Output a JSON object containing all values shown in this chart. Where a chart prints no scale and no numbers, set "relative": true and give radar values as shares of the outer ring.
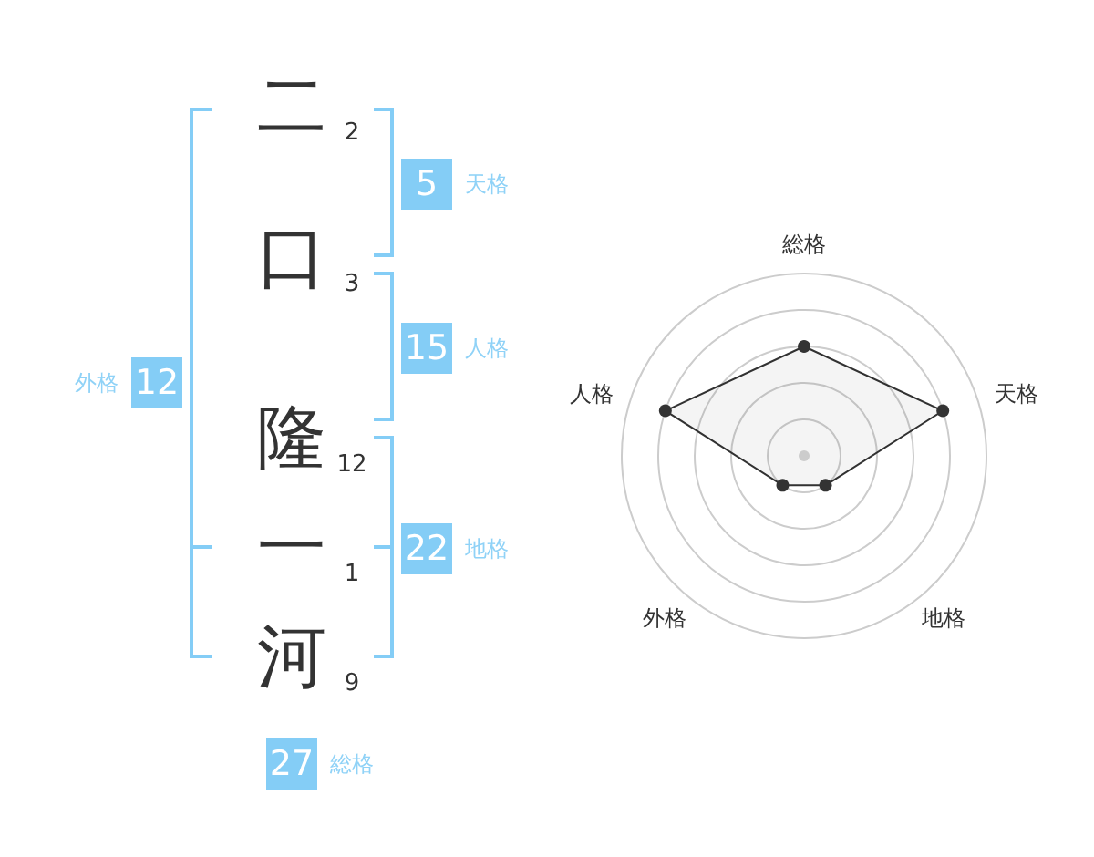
{
  "chart_data": [
    {
      "type": "other",
      "categories": [
        "二",
        "口",
        "隆",
        "一",
        "河"
      ],
      "values": [
        2,
        3,
        12,
        1,
        9
      ],
      "data_labels": true,
      "annotations": [
        "5",
        "天格",
        "15",
        "人格",
        "22",
        "地格",
        "12",
        "外格",
        "27",
        "総格"
      ]
    },
    {
      "type": "radar",
      "categories": [
        "総格",
        "天格",
        "地格",
        "外格",
        "人格"
      ],
      "relative": true,
      "series": [
        {
          "color": "#333333",
          "values": [
            0.6,
            0.8,
            0.2,
            0.2,
            0.8
          ]
        }
      ],
      "marker": "circle",
      "grid": true
    }
  ]
}
